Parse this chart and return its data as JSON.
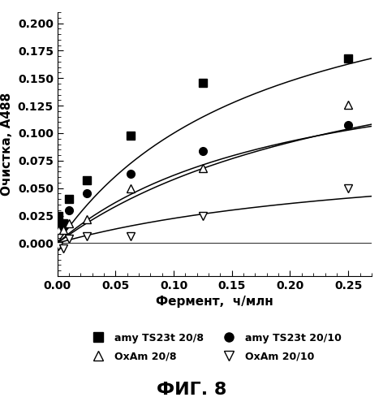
{
  "title": "ФИГ. 8",
  "xlabel": "Фермент,  ч/млн",
  "ylabel": "Очистка, А488",
  "xlim": [
    0,
    0.27
  ],
  "ylim": [
    -0.03,
    0.21
  ],
  "yticks": [
    0,
    0.025,
    0.05,
    0.075,
    0.1,
    0.125,
    0.15,
    0.175,
    0.2
  ],
  "xticks": [
    0,
    0.05,
    0.1,
    0.15,
    0.2,
    0.25
  ],
  "series": [
    {
      "label": "amy TS23t 20/8",
      "marker": "s",
      "filled": true,
      "x": [
        0.001,
        0.005,
        0.01,
        0.025,
        0.063,
        0.125,
        0.25
      ],
      "y": [
        0.025,
        0.018,
        0.04,
        0.057,
        0.098,
        0.146,
        0.168
      ],
      "fit_Vmax": 0.28,
      "fit_Km": 0.18
    },
    {
      "label": "amy TS23t 20/10",
      "marker": "o",
      "filled": true,
      "x": [
        0.001,
        0.005,
        0.01,
        0.025,
        0.063,
        0.125,
        0.25
      ],
      "y": [
        0.018,
        0.015,
        0.03,
        0.045,
        0.063,
        0.084,
        0.107
      ],
      "fit_Vmax": 0.185,
      "fit_Km": 0.2
    },
    {
      "label": "OxAm 20/8",
      "marker": "^",
      "filled": false,
      "x": [
        0.001,
        0.005,
        0.01,
        0.025,
        0.063,
        0.125,
        0.25
      ],
      "y": [
        0.012,
        0.012,
        0.018,
        0.022,
        0.05,
        0.068,
        0.126
      ],
      "fit_Vmax": 0.22,
      "fit_Km": 0.28
    },
    {
      "label": "OxAm 20/10",
      "marker": "v",
      "filled": false,
      "x": [
        0.001,
        0.005,
        0.01,
        0.025,
        0.063,
        0.125,
        0.25
      ],
      "y": [
        -0.003,
        -0.005,
        0.004,
        0.006,
        0.006,
        0.025,
        0.05
      ],
      "fit_Vmax": 0.09,
      "fit_Km": 0.3
    }
  ],
  "background_color": "#ffffff",
  "legend_fontsize": 9,
  "axis_label_fontsize": 11,
  "tick_fontsize": 10,
  "title_fontsize": 16,
  "markersize": 7
}
